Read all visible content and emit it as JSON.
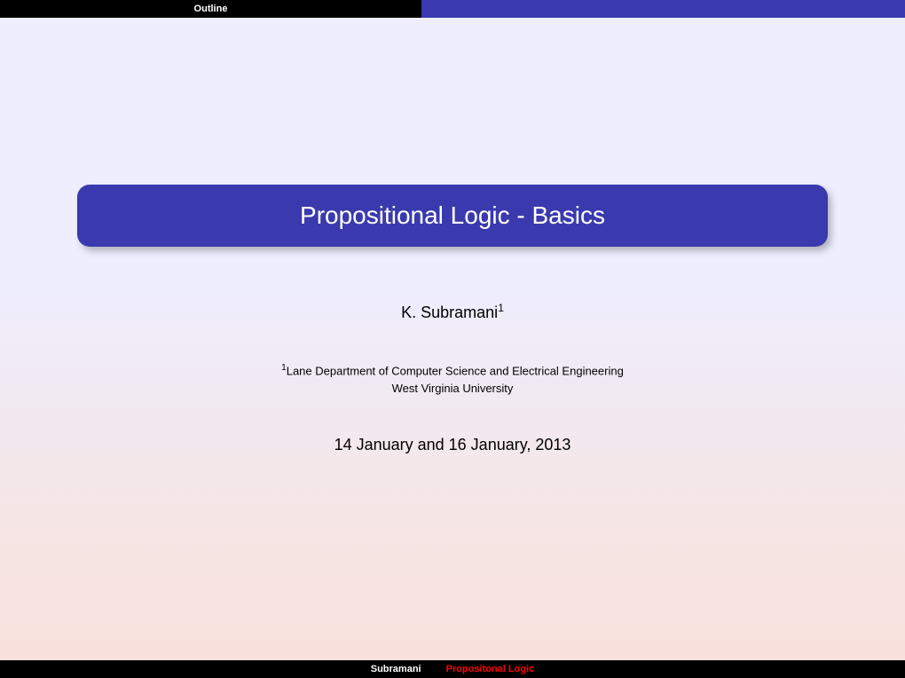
{
  "colors": {
    "header_bar_left_bg": "#000000",
    "header_bar_right_bg": "#3a3aae",
    "title_box_bg": "#3a3aae",
    "title_text": "#ffffff",
    "body_text": "#000000",
    "footer_bg": "#000000",
    "footer_left_text": "#ffffff",
    "footer_right_text": "#ff0000",
    "bg_gradient_top": "#eeeeff",
    "bg_gradient_bottom": "#f9e0db"
  },
  "header": {
    "nav_label": "Outline"
  },
  "title": {
    "text": "Propositional Logic - Basics",
    "fontsize": 28
  },
  "author": {
    "name": "K. Subramani",
    "sup": "1",
    "fontsize": 18
  },
  "affiliation": {
    "sup": "1",
    "line1": "Lane Department of Computer Science and Electrical Engineering",
    "line2": "West Virginia University",
    "fontsize": 13
  },
  "date": {
    "text": "14 January and 16 January, 2013",
    "fontsize": 18
  },
  "footer": {
    "left": "Subramani",
    "right": "Propositonal Logic"
  }
}
